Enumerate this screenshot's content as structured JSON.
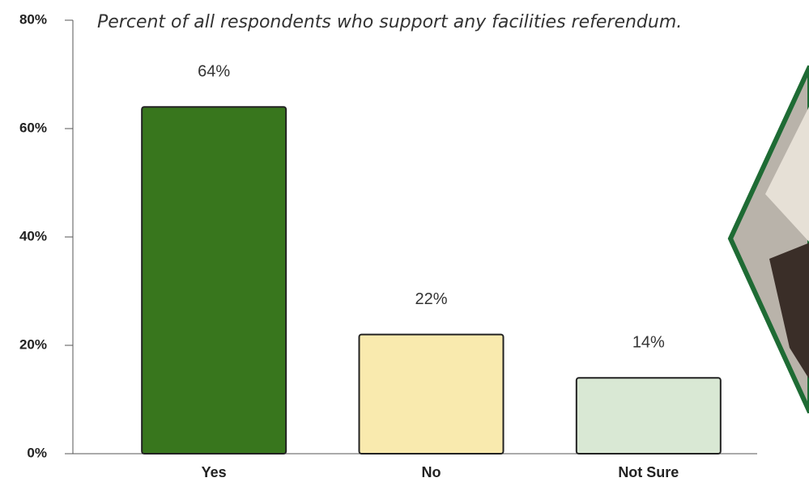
{
  "chart_data": {
    "type": "bar",
    "title": "Percent of all respondents who support any facilities referendum.",
    "categories": [
      "Yes",
      "No",
      "Not Sure"
    ],
    "values": [
      64,
      22,
      14
    ],
    "value_labels": [
      "64%",
      "22%",
      "14%"
    ],
    "colors": [
      "#38761d",
      "#f9eaae",
      "#d9e8d4"
    ],
    "ylim": [
      0,
      80
    ],
    "yticks": [
      {
        "value": 0,
        "label": "0%"
      },
      {
        "value": 20,
        "label": "20%"
      },
      {
        "value": 40,
        "label": "40%"
      },
      {
        "value": 60,
        "label": "60%"
      },
      {
        "value": 80,
        "label": "80%"
      }
    ],
    "grid": false
  }
}
